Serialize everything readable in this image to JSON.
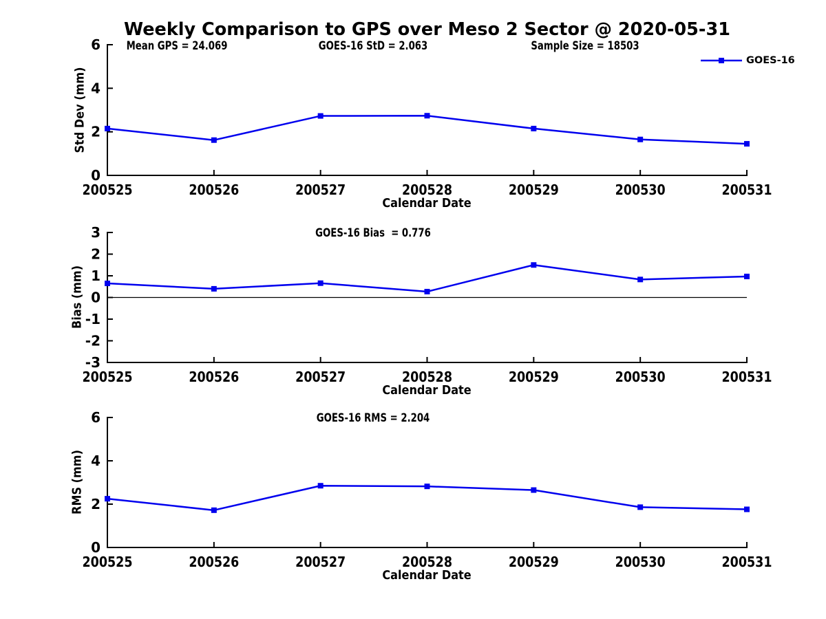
{
  "title": "Weekly Comparison to GPS over Meso 2 Sector @ 2020-05-31",
  "legend": {
    "label": "GOES-16",
    "marker": "filled-square",
    "position": "top-right"
  },
  "colors": {
    "line": "#0000EE",
    "axis": "#000000",
    "text": "#000000",
    "background": "#FFFFFF"
  },
  "chart_data": [
    {
      "type": "line",
      "name": "std-dev",
      "annotations": [
        {
          "text": "Mean GPS = 24.069"
        },
        {
          "text": "GOES-16 StD = 2.063"
        },
        {
          "text": "Sample Size = 18503"
        }
      ],
      "ylabel": "Std Dev (mm)",
      "xlabel": "Calendar Date",
      "categories": [
        "200525",
        "200526",
        "200527",
        "200528",
        "200529",
        "200530",
        "200531"
      ],
      "series": [
        {
          "name": "GOES-16",
          "values": [
            2.15,
            1.62,
            2.73,
            2.74,
            2.15,
            1.65,
            1.45
          ]
        }
      ],
      "ylim": [
        0,
        6
      ],
      "yticks": [
        0,
        2,
        4,
        6
      ],
      "zero_line": false,
      "grid": false,
      "legend": true
    },
    {
      "type": "line",
      "name": "bias",
      "annotations": [
        {
          "text": "GOES-16 Bias  = 0.776"
        }
      ],
      "ylabel": "Bias (mm)",
      "xlabel": "Calendar Date",
      "categories": [
        "200525",
        "200526",
        "200527",
        "200528",
        "200529",
        "200530",
        "200531"
      ],
      "series": [
        {
          "name": "GOES-16",
          "values": [
            0.65,
            0.4,
            0.66,
            0.27,
            1.5,
            0.83,
            0.97
          ]
        }
      ],
      "ylim": [
        -3,
        3
      ],
      "yticks": [
        3,
        2,
        1,
        0,
        -1,
        -2,
        -3
      ],
      "zero_line": true,
      "grid": false,
      "legend": false
    },
    {
      "type": "line",
      "name": "rms",
      "annotations": [
        {
          "text": "GOES-16 RMS = 2.204"
        }
      ],
      "ylabel": "RMS (mm)",
      "xlabel": "Calendar Date",
      "categories": [
        "200525",
        "200526",
        "200527",
        "200528",
        "200529",
        "200530",
        "200531"
      ],
      "series": [
        {
          "name": "GOES-16",
          "values": [
            2.25,
            1.72,
            2.85,
            2.82,
            2.65,
            1.86,
            1.76
          ]
        }
      ],
      "ylim": [
        0,
        6
      ],
      "yticks": [
        0,
        2,
        4,
        6
      ],
      "zero_line": false,
      "grid": false,
      "legend": false
    }
  ]
}
